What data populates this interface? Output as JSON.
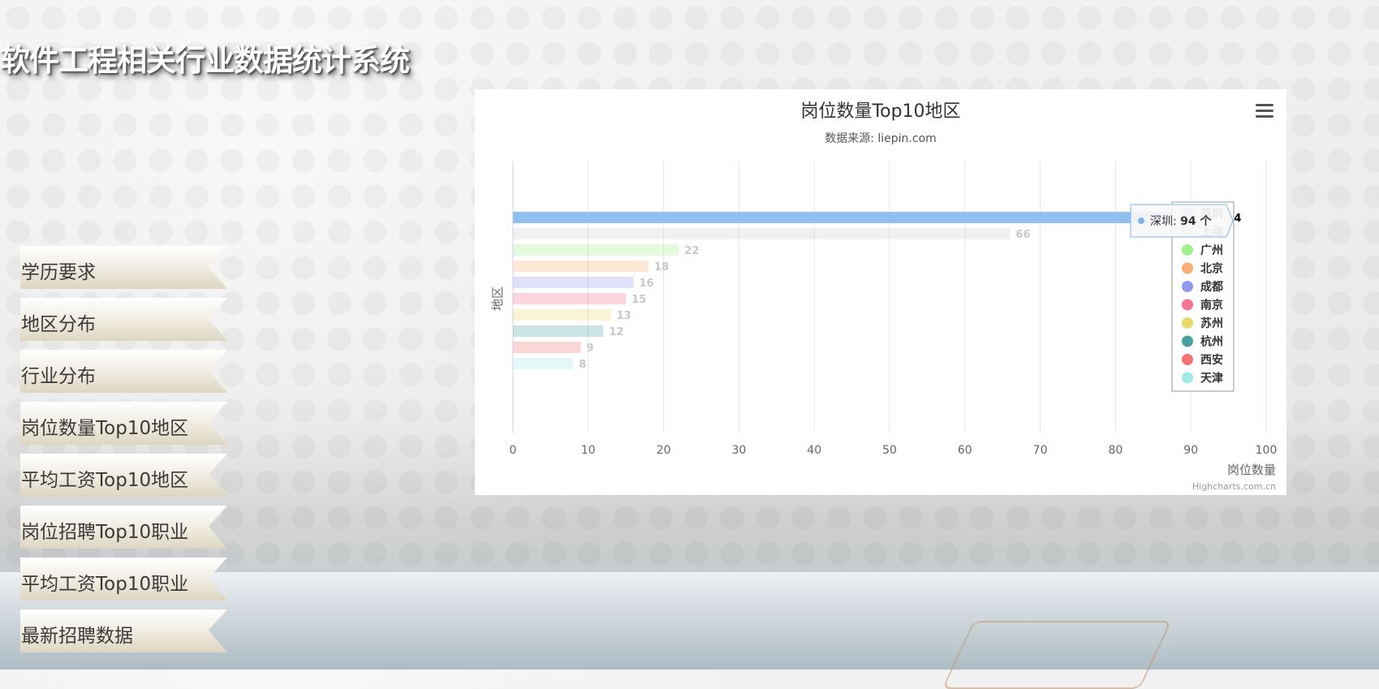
{
  "site": {
    "title": "软件工程相关行业数据统计系统"
  },
  "nav": {
    "items": [
      {
        "label": "学历要求"
      },
      {
        "label": "地区分布"
      },
      {
        "label": "行业分布"
      },
      {
        "label": "岗位数量Top10地区"
      },
      {
        "label": "平均工资Top10地区"
      },
      {
        "label": "岗位招聘Top10职业"
      },
      {
        "label": "平均工资Top10职业"
      },
      {
        "label": "最新招聘数据"
      }
    ]
  },
  "icons": {
    "menu": "hamburger-menu-icon"
  },
  "chart_data": {
    "type": "bar",
    "orientation": "horizontal",
    "title": "岗位数量Top10地区",
    "subtitle": "数据来源: liepin.com",
    "xlabel": "地区",
    "ylabel": "岗位数量",
    "categories": [
      "深圳",
      "上海",
      "广州",
      "北京",
      "成都",
      "南京",
      "苏州",
      "杭州",
      "西安",
      "天津"
    ],
    "values": [
      94,
      66,
      22,
      18,
      16,
      15,
      13,
      12,
      9,
      8
    ],
    "colors": [
      "#7cb5ec",
      "#c8c8c8",
      "#90ed7d",
      "#f7a35c",
      "#8085e9",
      "#f15c80",
      "#e4d354",
      "#2b908f",
      "#f45b5b",
      "#91e8e1"
    ],
    "highlighted_index": 0,
    "ylim": [
      0,
      100
    ],
    "yticks": [
      0,
      10,
      20,
      30,
      40,
      50,
      60,
      70,
      80,
      90,
      100
    ],
    "grid": true,
    "legend": {
      "position": "right",
      "layout": "vertical"
    },
    "tooltip": {
      "category": "深圳",
      "value": "94 个"
    },
    "credits": "Highcharts.com.cn"
  }
}
